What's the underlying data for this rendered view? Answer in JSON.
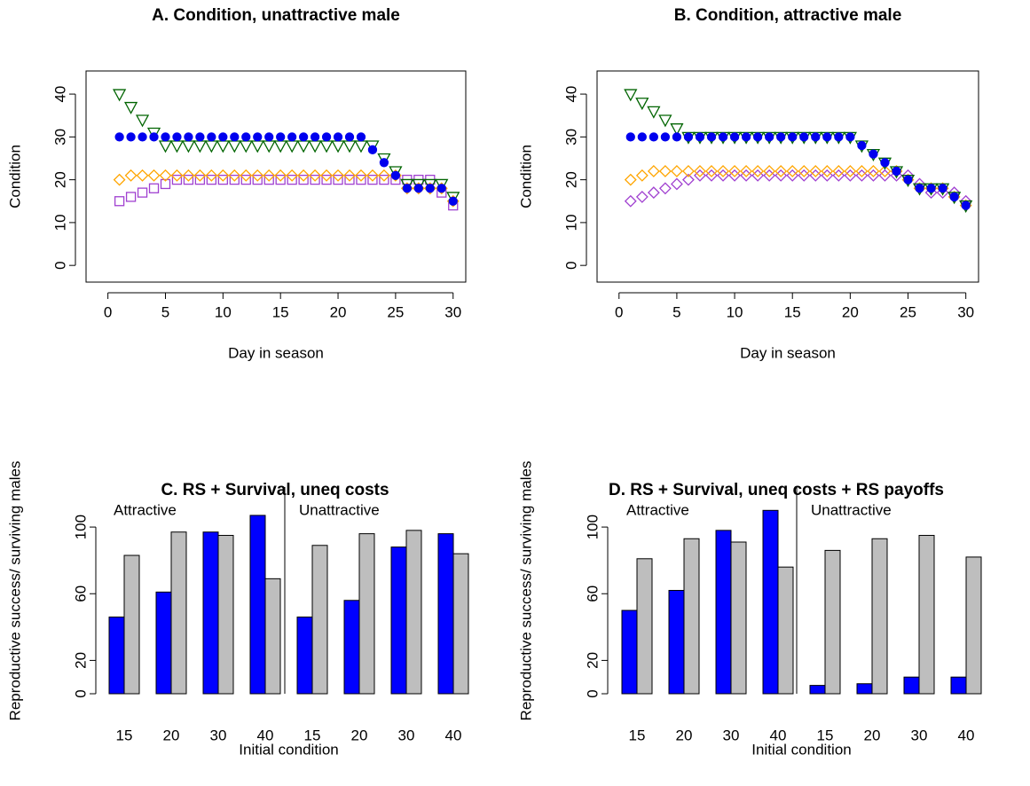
{
  "chart_data": [
    {
      "type": "scatter",
      "title": "A. Condition, unattractive male",
      "x_label": "Day in season",
      "y_label": "Condition",
      "x": [
        1,
        2,
        3,
        4,
        5,
        6,
        7,
        8,
        9,
        10,
        11,
        12,
        13,
        14,
        15,
        16,
        17,
        18,
        19,
        20,
        21,
        22,
        23,
        24,
        25,
        26,
        27,
        28,
        29,
        30
      ],
      "xlim": [
        -1.9,
        31.1
      ],
      "ylim": [
        -3.9,
        45.4
      ],
      "xticks": [
        0,
        5,
        10,
        15,
        20,
        25,
        30
      ],
      "yticks": [
        0,
        10,
        20,
        30,
        40
      ],
      "series": [
        {
          "marker": "square",
          "color": "#a040d0",
          "values": [
            15,
            16,
            17,
            18,
            19,
            20,
            20,
            20,
            20,
            20,
            20,
            20,
            20,
            20,
            20,
            20,
            20,
            20,
            20,
            20,
            20,
            20,
            20,
            20,
            20,
            20,
            20,
            20,
            17,
            14
          ]
        },
        {
          "marker": "diamond",
          "color": "#ffa500",
          "values": [
            20,
            21,
            21,
            21,
            21,
            21,
            21,
            21,
            21,
            21,
            21,
            21,
            21,
            21,
            21,
            21,
            21,
            21,
            21,
            21,
            21,
            21,
            21,
            21,
            21,
            18,
            18,
            18,
            18,
            15
          ]
        },
        {
          "marker": "triangle",
          "color": "#006400",
          "values": [
            40,
            37,
            34,
            31,
            28,
            28,
            28,
            28,
            28,
            28,
            28,
            28,
            28,
            28,
            28,
            28,
            28,
            28,
            28,
            28,
            28,
            28,
            28,
            25,
            22,
            19,
            19,
            19,
            19,
            16
          ]
        },
        {
          "marker": "circle",
          "color": "#0000ee",
          "values": [
            30,
            30,
            30,
            30,
            30,
            30,
            30,
            30,
            30,
            30,
            30,
            30,
            30,
            30,
            30,
            30,
            30,
            30,
            30,
            30,
            30,
            30,
            27,
            24,
            21,
            18,
            18,
            18,
            18,
            15
          ]
        }
      ]
    },
    {
      "type": "scatter",
      "title": "B. Condition, attractive male",
      "x_label": "Day in season",
      "y_label": "Condition",
      "x": [
        1,
        2,
        3,
        4,
        5,
        6,
        7,
        8,
        9,
        10,
        11,
        12,
        13,
        14,
        15,
        16,
        17,
        18,
        19,
        20,
        21,
        22,
        23,
        24,
        25,
        26,
        27,
        28,
        29,
        30
      ],
      "xlim": [
        -1.9,
        31.1
      ],
      "ylim": [
        -3.9,
        45.4
      ],
      "xticks": [
        0,
        5,
        10,
        15,
        20,
        25,
        30
      ],
      "yticks": [
        0,
        10,
        20,
        30,
        40
      ],
      "series": [
        {
          "marker": "diamond",
          "color": "#a040d0",
          "values": [
            15,
            16,
            17,
            18,
            19,
            20,
            21,
            21,
            21,
            21,
            21,
            21,
            21,
            21,
            21,
            21,
            21,
            21,
            21,
            21,
            21,
            21,
            21,
            21,
            21,
            19,
            17,
            17,
            17,
            15
          ]
        },
        {
          "marker": "diamond",
          "color": "#ffa500",
          "values": [
            20,
            21,
            22,
            22,
            22,
            22,
            22,
            22,
            22,
            22,
            22,
            22,
            22,
            22,
            22,
            22,
            22,
            22,
            22,
            22,
            22,
            22,
            22,
            22,
            20,
            18,
            18,
            18,
            16,
            14
          ]
        },
        {
          "marker": "triangle",
          "color": "#006400",
          "values": [
            40,
            38,
            36,
            34,
            32,
            30,
            30,
            30,
            30,
            30,
            30,
            30,
            30,
            30,
            30,
            30,
            30,
            30,
            30,
            30,
            28,
            26,
            24,
            22,
            20,
            18,
            18,
            18,
            16,
            14
          ]
        },
        {
          "marker": "circle",
          "color": "#0000ee",
          "values": [
            30,
            30,
            30,
            30,
            30,
            30,
            30,
            30,
            30,
            30,
            30,
            30,
            30,
            30,
            30,
            30,
            30,
            30,
            30,
            30,
            28,
            26,
            24,
            22,
            20,
            18,
            18,
            18,
            16,
            14
          ]
        }
      ]
    },
    {
      "type": "bar",
      "title": "C. RS + Survival, uneq costs",
      "x_label": "Initial condition",
      "y_label": "Reproductive success/ surviving males",
      "categories": [
        "15",
        "20",
        "30",
        "40",
        "15",
        "20",
        "30",
        "40"
      ],
      "groups": [
        "Attractive",
        "Unattractive"
      ],
      "ylim": [
        0,
        124
      ],
      "yticks": [
        0,
        20,
        60,
        100
      ],
      "series": [
        {
          "color": "#0000ff",
          "values": [
            46,
            61,
            97,
            107,
            46,
            56,
            88,
            96
          ]
        },
        {
          "color": "#bebebe",
          "values": [
            83,
            97,
            95,
            69,
            89,
            96,
            98,
            84
          ]
        }
      ]
    },
    {
      "type": "bar",
      "title": "D. RS + Survival, uneq costs + RS payoffs",
      "x_label": "Initial condition",
      "y_label": "Reproductive success/ surviving males",
      "categories": [
        "15",
        "20",
        "30",
        "40",
        "15",
        "20",
        "30",
        "40"
      ],
      "groups": [
        "Attractive",
        "Unattractive"
      ],
      "ylim": [
        0,
        124
      ],
      "yticks": [
        0,
        20,
        60,
        100
      ],
      "series": [
        {
          "color": "#0000ff",
          "values": [
            50,
            62,
            98,
            110,
            5,
            6,
            10,
            10
          ]
        },
        {
          "color": "#bebebe",
          "values": [
            81,
            93,
            91,
            76,
            86,
            93,
            95,
            82
          ]
        }
      ]
    }
  ]
}
